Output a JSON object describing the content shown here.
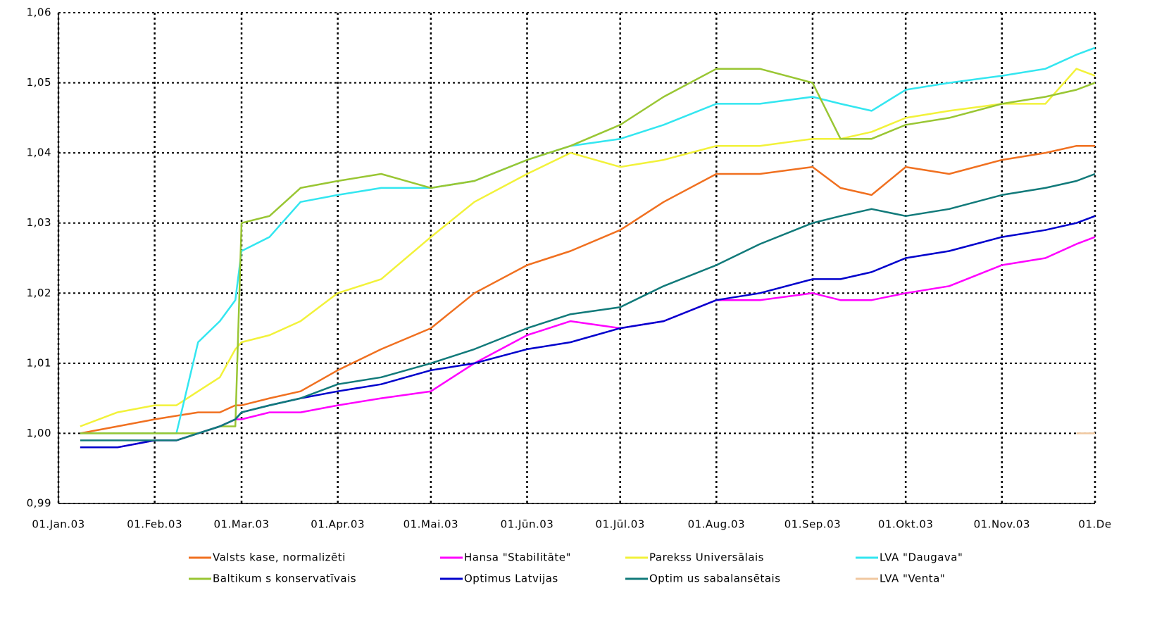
{
  "chart_data": {
    "type": "line",
    "x": [
      "2003-01-08",
      "2003-01-20",
      "2003-02-01",
      "2003-02-08",
      "2003-02-15",
      "2003-02-22",
      "2003-02-27",
      "2003-03-01",
      "2003-03-10",
      "2003-03-20",
      "2003-04-01",
      "2003-04-15",
      "2003-05-01",
      "2003-05-15",
      "2003-06-01",
      "2003-06-15",
      "2003-07-01",
      "2003-07-15",
      "2003-08-01",
      "2003-08-15",
      "2003-09-01",
      "2003-09-10",
      "2003-09-20",
      "2003-10-01",
      "2003-10-15",
      "2003-11-01",
      "2003-11-15",
      "2003-11-25",
      "2003-12-01"
    ],
    "series": [
      {
        "name": "Valsts kase, normalizēti",
        "color": "#f07020",
        "values": [
          1.0,
          1.001,
          1.002,
          1.0025,
          1.003,
          1.003,
          1.004,
          1.004,
          1.005,
          1.006,
          1.009,
          1.012,
          1.015,
          1.02,
          1.024,
          1.026,
          1.029,
          1.033,
          1.037,
          1.037,
          1.038,
          1.035,
          1.034,
          1.038,
          1.037,
          1.039,
          1.04,
          1.041,
          1.041
        ]
      },
      {
        "name": "Hansa \"Stabilitāte\"",
        "color": "#ff00ff",
        "values": [
          0.998,
          0.998,
          0.999,
          0.999,
          1.0,
          1.001,
          1.002,
          1.002,
          1.003,
          1.003,
          1.004,
          1.005,
          1.006,
          1.01,
          1.014,
          1.016,
          1.015,
          1.016,
          1.019,
          1.019,
          1.02,
          1.019,
          1.019,
          1.02,
          1.021,
          1.024,
          1.025,
          1.027,
          1.028
        ]
      },
      {
        "name": "Parekss Universālais",
        "color": "#f2f23a",
        "values": [
          1.001,
          1.003,
          1.004,
          1.004,
          1.006,
          1.008,
          1.012,
          1.013,
          1.014,
          1.016,
          1.02,
          1.022,
          1.028,
          1.033,
          1.037,
          1.04,
          1.038,
          1.039,
          1.041,
          1.041,
          1.042,
          1.042,
          1.043,
          1.045,
          1.046,
          1.047,
          1.047,
          1.052,
          1.051
        ]
      },
      {
        "name": "LVA \"Daugava\"",
        "color": "#33e6f0",
        "values": [
          1.0,
          1.0,
          1.0,
          1.0,
          1.013,
          1.016,
          1.019,
          1.026,
          1.028,
          1.033,
          1.034,
          1.035,
          1.035,
          1.036,
          1.039,
          1.041,
          1.042,
          1.044,
          1.047,
          1.047,
          1.048,
          1.047,
          1.046,
          1.049,
          1.05,
          1.051,
          1.052,
          1.054,
          1.055
        ]
      },
      {
        "name": "Baltikum s konservatīvais",
        "color": "#99c633",
        "values": [
          1.0,
          1.0,
          1.0,
          1.0,
          1.0,
          1.001,
          1.001,
          1.03,
          1.031,
          1.035,
          1.036,
          1.037,
          1.035,
          1.036,
          1.039,
          1.041,
          1.044,
          1.048,
          1.052,
          1.052,
          1.05,
          1.042,
          1.042,
          1.044,
          1.045,
          1.047,
          1.048,
          1.049,
          1.05
        ]
      },
      {
        "name": "Optimus Latvijas",
        "color": "#0000cc",
        "values": [
          0.998,
          0.998,
          0.999,
          0.999,
          1.0,
          1.001,
          1.002,
          1.003,
          1.004,
          1.005,
          1.006,
          1.007,
          1.009,
          1.01,
          1.012,
          1.013,
          1.015,
          1.016,
          1.019,
          1.02,
          1.022,
          1.022,
          1.023,
          1.025,
          1.026,
          1.028,
          1.029,
          1.03,
          1.031
        ]
      },
      {
        "name": "Optim us sabalansētais",
        "color": "#117a7a",
        "values": [
          0.999,
          0.999,
          0.999,
          0.999,
          1.0,
          1.001,
          1.002,
          1.003,
          1.004,
          1.005,
          1.007,
          1.008,
          1.01,
          1.012,
          1.015,
          1.017,
          1.018,
          1.021,
          1.024,
          1.027,
          1.03,
          1.031,
          1.032,
          1.031,
          1.032,
          1.034,
          1.035,
          1.036,
          1.037
        ]
      },
      {
        "name": "LVA \"Venta\"",
        "color": "#f0c8a0",
        "values": [
          null,
          null,
          null,
          null,
          null,
          null,
          null,
          null,
          null,
          null,
          null,
          null,
          null,
          null,
          null,
          null,
          null,
          null,
          null,
          null,
          null,
          null,
          null,
          null,
          null,
          null,
          null,
          1.0,
          1.0
        ]
      }
    ],
    "xlim": [
      "2003-01-01",
      "2003-12-01"
    ],
    "xticks": [
      {
        "value": "2003-01-01",
        "label": "01.Jan.03"
      },
      {
        "value": "2003-02-01",
        "label": "01.Feb.03"
      },
      {
        "value": "2003-03-01",
        "label": "01.Mar.03"
      },
      {
        "value": "2003-04-01",
        "label": "01.Apr.03"
      },
      {
        "value": "2003-05-01",
        "label": "01.Mai.03"
      },
      {
        "value": "2003-06-01",
        "label": "01.Jūn.03"
      },
      {
        "value": "2003-07-01",
        "label": "01.Jūl.03"
      },
      {
        "value": "2003-08-01",
        "label": "01.Aug.03"
      },
      {
        "value": "2003-09-01",
        "label": "01.Sep.03"
      },
      {
        "value": "2003-10-01",
        "label": "01.Okt.03"
      },
      {
        "value": "2003-11-01",
        "label": "01.Nov.03"
      },
      {
        "value": "2003-12-01",
        "label": "01.De"
      }
    ],
    "ylim": [
      0.99,
      1.06
    ],
    "yticks": [
      {
        "value": 0.99,
        "label": "0,99"
      },
      {
        "value": 1.0,
        "label": "1,00"
      },
      {
        "value": 1.01,
        "label": "1,01"
      },
      {
        "value": 1.02,
        "label": "1,02"
      },
      {
        "value": 1.03,
        "label": "1,03"
      },
      {
        "value": 1.04,
        "label": "1,04"
      },
      {
        "value": 1.05,
        "label": "1,05"
      },
      {
        "value": 1.06,
        "label": "1,06"
      }
    ],
    "grid": true
  }
}
